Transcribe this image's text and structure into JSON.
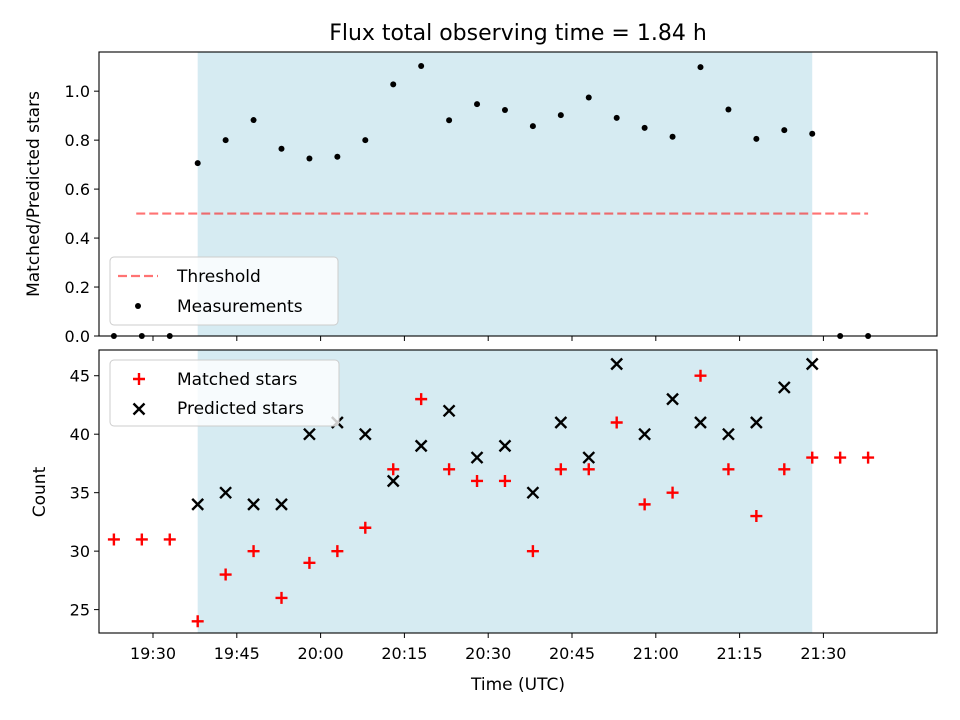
{
  "colors": {
    "observing_band": "#add8e6",
    "threshold": "#ff0000",
    "measurement": "#000000",
    "matched": "#ff0000",
    "predicted": "#000000"
  },
  "chart_data": [
    {
      "type": "scatter",
      "title": "Flux total observing time = 1.84 h",
      "xlabel": "",
      "ylabel": "Matched/Predicted stars",
      "ylim": [
        0,
        1.16
      ],
      "yticks": [
        "0.0",
        "0.2",
        "0.4",
        "0.6",
        "0.8",
        "1.0"
      ],
      "xticks": [
        "19:30",
        "19:45",
        "20:00",
        "20:15",
        "20:30",
        "20:45",
        "21:00",
        "21:15",
        "21:30"
      ],
      "xlim": [
        "19:20:20",
        "21:50:20"
      ],
      "observing_band": [
        "19:38",
        "21:28"
      ],
      "legend": {
        "position": "lower-left",
        "entries": [
          "Threshold",
          "Measurements"
        ]
      },
      "threshold": {
        "name": "Threshold",
        "value": 0.5,
        "x_range": [
          "19:27",
          "21:38"
        ]
      },
      "series": [
        {
          "name": "Measurements",
          "marker": "dot",
          "x": [
            "19:23",
            "19:28",
            "19:33",
            "19:38",
            "19:43",
            "19:48",
            "19:53",
            "19:58",
            "20:03",
            "20:08",
            "20:13",
            "20:18",
            "20:23",
            "20:28",
            "20:33",
            "20:38",
            "20:43",
            "20:48",
            "20:53",
            "20:58",
            "21:03",
            "21:08",
            "21:13",
            "21:18",
            "21:23",
            "21:28",
            "21:33",
            "21:38"
          ],
          "y": [
            0,
            0,
            0,
            0.706,
            0.8,
            0.882,
            0.765,
            0.725,
            0.732,
            0.8,
            1.028,
            1.103,
            0.881,
            0.947,
            0.923,
            0.857,
            0.902,
            0.974,
            0.891,
            0.85,
            0.814,
            1.098,
            0.925,
            0.805,
            0.841,
            0.826,
            0,
            0
          ]
        }
      ]
    },
    {
      "type": "scatter",
      "xlabel": "Time (UTC)",
      "ylabel": "Count",
      "ylim": [
        23,
        47.2
      ],
      "yticks": [
        "25",
        "30",
        "35",
        "40",
        "45"
      ],
      "xticks": [
        "19:30",
        "19:45",
        "20:00",
        "20:15",
        "20:30",
        "20:45",
        "21:00",
        "21:15",
        "21:30"
      ],
      "xlim": [
        "19:20:20",
        "21:50:20"
      ],
      "observing_band": [
        "19:38",
        "21:28"
      ],
      "legend": {
        "position": "upper-left",
        "entries": [
          "Matched stars",
          "Predicted stars"
        ]
      },
      "series": [
        {
          "name": "Matched stars",
          "marker": "plus",
          "x": [
            "19:23",
            "19:28",
            "19:33",
            "19:38",
            "19:43",
            "19:48",
            "19:53",
            "19:58",
            "20:03",
            "20:08",
            "20:13",
            "20:18",
            "20:23",
            "20:28",
            "20:33",
            "20:38",
            "20:43",
            "20:48",
            "20:53",
            "20:58",
            "21:03",
            "21:08",
            "21:13",
            "21:18",
            "21:23",
            "21:28",
            "21:33",
            "21:38"
          ],
          "y": [
            31,
            31,
            31,
            24,
            28,
            30,
            26,
            29,
            30,
            32,
            37,
            43,
            37,
            36,
            36,
            30,
            37,
            37,
            41,
            34,
            35,
            45,
            37,
            33,
            37,
            38,
            38,
            38
          ]
        },
        {
          "name": "Predicted stars",
          "marker": "x",
          "x": [
            "19:38",
            "19:43",
            "19:48",
            "19:53",
            "19:58",
            "20:03",
            "20:08",
            "20:13",
            "20:18",
            "20:23",
            "20:28",
            "20:33",
            "20:38",
            "20:43",
            "20:48",
            "20:53",
            "20:58",
            "21:03",
            "21:08",
            "21:13",
            "21:18",
            "21:23",
            "21:28"
          ],
          "y": [
            34,
            35,
            34,
            34,
            40,
            41,
            40,
            36,
            39,
            42,
            38,
            39,
            35,
            41,
            38,
            46,
            40,
            43,
            41,
            40,
            41,
            44,
            46
          ]
        }
      ]
    }
  ]
}
